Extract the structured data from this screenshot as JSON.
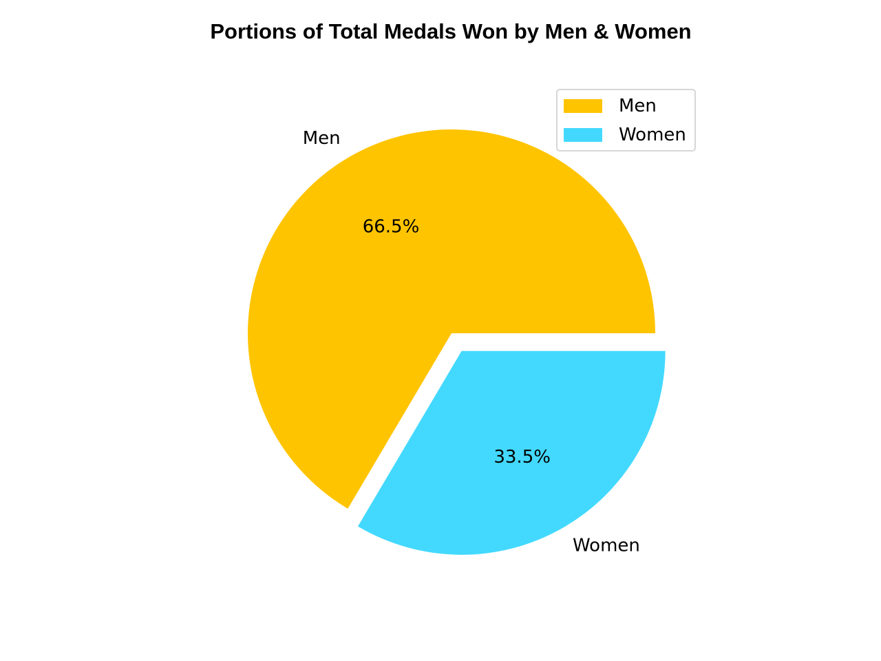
{
  "chart_data": {
    "type": "pie",
    "title": "Portions of Total Medals Won by Men & Women",
    "categories": [
      "Men",
      "Women"
    ],
    "values": [
      66.5,
      33.5
    ],
    "value_labels": [
      "66.5%",
      "33.5%"
    ],
    "colors": [
      "#FFC400",
      "#43D9FF"
    ],
    "exploded": [
      false,
      true
    ],
    "legend": {
      "placement": "top-right",
      "entries": [
        "Men",
        "Women"
      ]
    }
  }
}
